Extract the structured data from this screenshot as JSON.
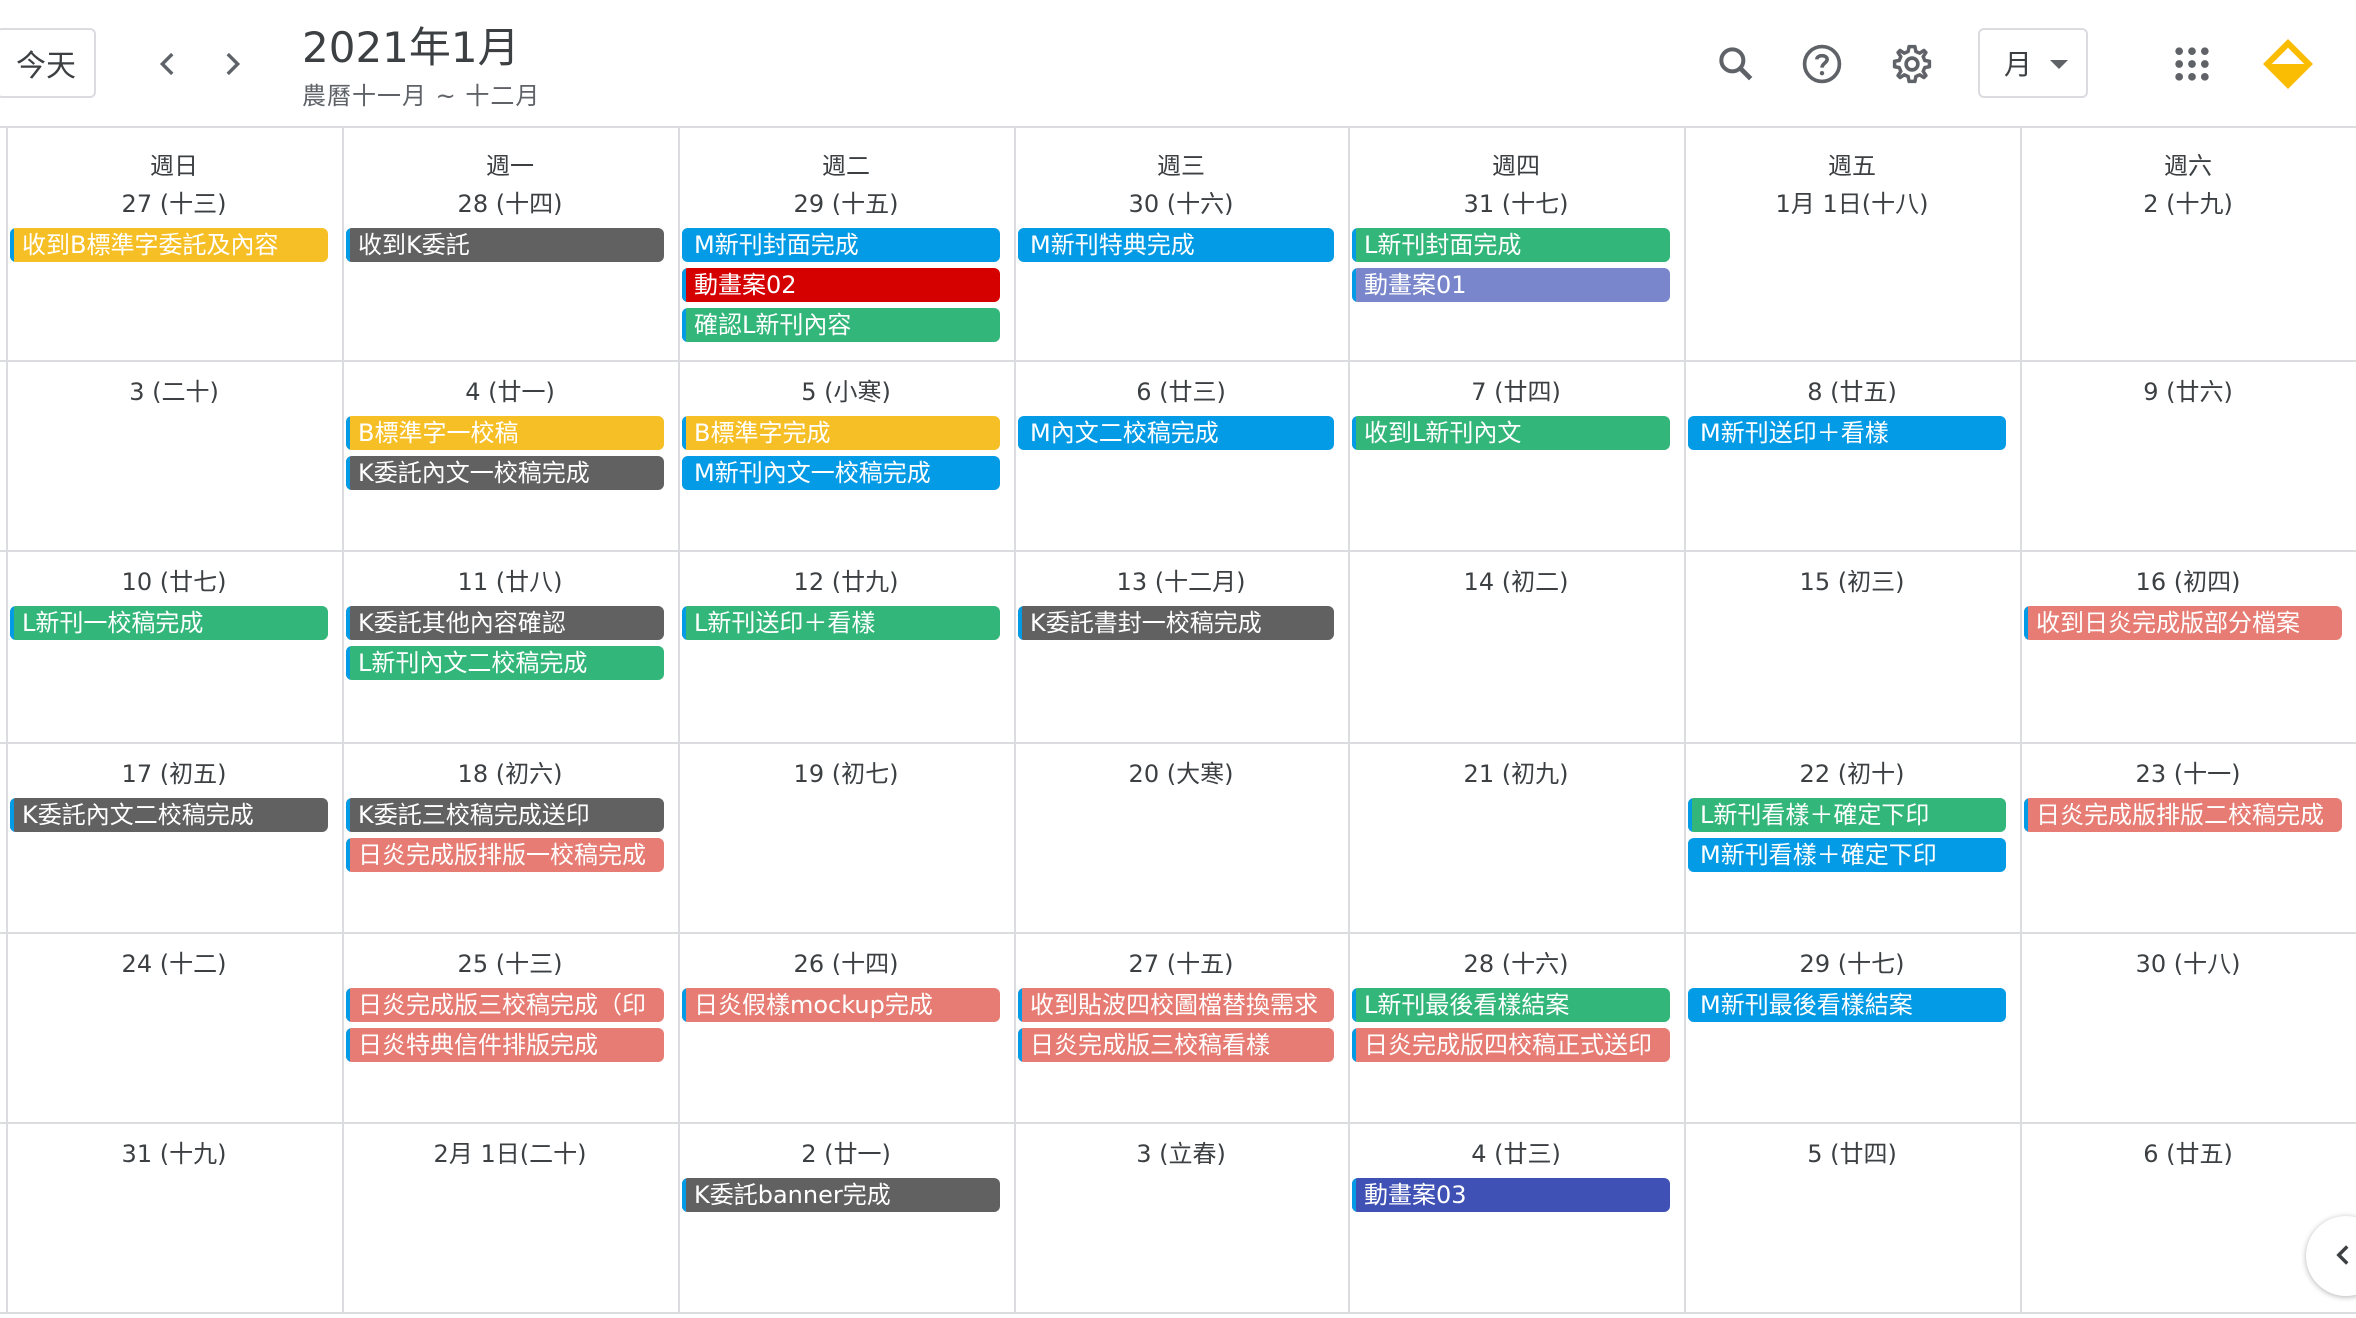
{
  "header": {
    "today_label": "今天",
    "title": "2021年1月",
    "subtitle": "農曆十一月 ~ 十二月",
    "view_label": "月",
    "icons": [
      "chevron-left-icon",
      "chevron-right-icon",
      "search-icon",
      "help-icon",
      "settings-icon",
      "caret-down-icon",
      "apps-grid-icon",
      "logo-icon"
    ]
  },
  "weekdays": [
    "週日",
    "週一",
    "週二",
    "週三",
    "週四",
    "週五",
    "週六"
  ],
  "colors": {
    "yellow": "#f6bf26",
    "graphite": "#616161",
    "peacock": "#039be5",
    "tomato": "#d50000",
    "sage": "#33b679",
    "lavender": "#7986cb",
    "flamingo": "#e67c73",
    "blueberry": "#3f51b5",
    "today_marker": "#039be5"
  },
  "weeks": [
    {
      "days": [
        {
          "date": "27 (十三)",
          "events": [
            {
              "label": "收到B標準字委託及內容",
              "color": "yellow"
            }
          ]
        },
        {
          "date": "28 (十四)",
          "events": [
            {
              "label": "收到K委託",
              "color": "graphite"
            }
          ]
        },
        {
          "date": "29 (十五)",
          "events": [
            {
              "label": "M新刊封面完成",
              "color": "peacock"
            },
            {
              "label": "動畫案02",
              "color": "tomato"
            },
            {
              "label": "確認L新刊內容",
              "color": "sage"
            }
          ]
        },
        {
          "date": "30 (十六)",
          "events": [
            {
              "label": "M新刊特典完成",
              "color": "peacock"
            }
          ]
        },
        {
          "date": "31 (十七)",
          "events": [
            {
              "label": "L新刊封面完成",
              "color": "sage"
            },
            {
              "label": "動畫案01",
              "color": "lavender"
            }
          ]
        },
        {
          "date": "1月 1日(十八)",
          "events": []
        },
        {
          "date": "2 (十九)",
          "events": []
        }
      ]
    },
    {
      "days": [
        {
          "date": "3 (二十)",
          "events": []
        },
        {
          "date": "4 (廿一)",
          "events": [
            {
              "label": "B標準字一校稿",
              "color": "yellow"
            },
            {
              "label": "K委託內文一校稿完成",
              "color": "graphite"
            }
          ]
        },
        {
          "date": "5 (小寒)",
          "events": [
            {
              "label": "B標準字完成",
              "color": "yellow"
            },
            {
              "label": "M新刊內文一校稿完成",
              "color": "peacock"
            }
          ]
        },
        {
          "date": "6 (廿三)",
          "events": [
            {
              "label": "M內文二校稿完成",
              "color": "peacock"
            }
          ]
        },
        {
          "date": "7 (廿四)",
          "events": [
            {
              "label": "收到L新刊內文",
              "color": "sage"
            }
          ]
        },
        {
          "date": "8 (廿五)",
          "events": [
            {
              "label": "M新刊送印＋看樣",
              "color": "peacock"
            }
          ]
        },
        {
          "date": "9 (廿六)",
          "events": []
        }
      ]
    },
    {
      "days": [
        {
          "date": "10 (廿七)",
          "events": [
            {
              "label": "L新刊一校稿完成",
              "color": "sage"
            }
          ]
        },
        {
          "date": "11 (廿八)",
          "events": [
            {
              "label": "K委託其他內容確認",
              "color": "graphite"
            },
            {
              "label": "L新刊內文二校稿完成",
              "color": "sage"
            }
          ]
        },
        {
          "date": "12 (廿九)",
          "events": [
            {
              "label": "L新刊送印＋看樣",
              "color": "sage"
            }
          ]
        },
        {
          "date": "13 (十二月)",
          "events": [
            {
              "label": "K委託書封一校稿完成",
              "color": "graphite"
            }
          ]
        },
        {
          "date": "14 (初二)",
          "events": []
        },
        {
          "date": "15 (初三)",
          "events": []
        },
        {
          "date": "16 (初四)",
          "events": [
            {
              "label": "收到日炎完成版部分檔案",
              "color": "flamingo"
            }
          ]
        }
      ]
    },
    {
      "days": [
        {
          "date": "17 (初五)",
          "events": [
            {
              "label": "K委託內文二校稿完成",
              "color": "graphite"
            }
          ]
        },
        {
          "date": "18 (初六)",
          "events": [
            {
              "label": "K委託三校稿完成送印",
              "color": "graphite"
            },
            {
              "label": "日炎完成版排版一校稿完成",
              "color": "flamingo"
            }
          ]
        },
        {
          "date": "19 (初七)",
          "events": []
        },
        {
          "date": "20 (大寒)",
          "events": []
        },
        {
          "date": "21 (初九)",
          "events": []
        },
        {
          "date": "22 (初十)",
          "events": [
            {
              "label": "L新刊看樣＋確定下印",
              "color": "sage"
            },
            {
              "label": "M新刊看樣＋確定下印",
              "color": "peacock"
            }
          ]
        },
        {
          "date": "23 (十一)",
          "events": [
            {
              "label": "日炎完成版排版二校稿完成",
              "color": "flamingo"
            }
          ]
        }
      ]
    },
    {
      "days": [
        {
          "date": "24 (十二)",
          "events": []
        },
        {
          "date": "25 (十三)",
          "events": [
            {
              "label": "日炎完成版三校稿完成（印",
              "color": "flamingo"
            },
            {
              "label": "日炎特典信件排版完成",
              "color": "flamingo"
            }
          ]
        },
        {
          "date": "26 (十四)",
          "events": [
            {
              "label": "日炎假樣mockup完成",
              "color": "flamingo"
            }
          ]
        },
        {
          "date": "27 (十五)",
          "events": [
            {
              "label": "收到貼波四校圖檔替換需求",
              "color": "flamingo"
            },
            {
              "label": "日炎完成版三校稿看樣",
              "color": "flamingo"
            }
          ]
        },
        {
          "date": "28 (十六)",
          "events": [
            {
              "label": "L新刊最後看樣結案",
              "color": "sage"
            },
            {
              "label": "日炎完成版四校稿正式送印",
              "color": "flamingo"
            }
          ]
        },
        {
          "date": "29 (十七)",
          "events": [
            {
              "label": "M新刊最後看樣結案",
              "color": "peacock"
            }
          ]
        },
        {
          "date": "30 (十八)",
          "events": []
        }
      ]
    },
    {
      "days": [
        {
          "date": "31 (十九)",
          "events": []
        },
        {
          "date": "2月 1日(二十)",
          "events": []
        },
        {
          "date": "2 (廿一)",
          "events": [
            {
              "label": "K委託banner完成",
              "color": "graphite"
            }
          ]
        },
        {
          "date": "3 (立春)",
          "events": []
        },
        {
          "date": "4 (廿三)",
          "events": [
            {
              "label": "動畫案03",
              "color": "blueberry"
            }
          ]
        },
        {
          "date": "5 (廿四)",
          "events": []
        },
        {
          "date": "6 (廿五)",
          "events": []
        }
      ]
    }
  ]
}
